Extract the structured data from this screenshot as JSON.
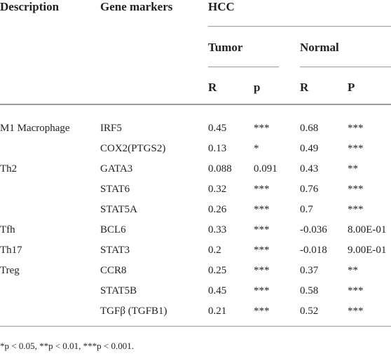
{
  "header": {
    "description": "Description",
    "gene_markers": "Gene markers",
    "hcc": "HCC",
    "tumor": "Tumor",
    "normal": "Normal",
    "tumor_r": "R",
    "tumor_p": "p",
    "normal_r": "R",
    "normal_p": "P"
  },
  "table": {
    "groups": [
      {
        "description": "M1 Macrophage",
        "rows": [
          [
            "IRF5",
            "0.45",
            "***",
            "0.68",
            "***"
          ],
          [
            "COX2(PTGS2)",
            "0.13",
            "*",
            "0.49",
            "***"
          ]
        ]
      },
      {
        "description": "Th2",
        "rows": [
          [
            "GATA3",
            "0.088",
            "0.091",
            "0.43",
            "**"
          ],
          [
            "STAT6",
            "0.32",
            "***",
            "0.76",
            "***"
          ],
          [
            "STAT5A",
            "0.26",
            "***",
            "0.7",
            "***"
          ]
        ]
      },
      {
        "description": "Tfh",
        "rows": [
          [
            "BCL6",
            "0.33",
            "***",
            "-0.036",
            "8.00E-01"
          ]
        ]
      },
      {
        "description": "Th17",
        "rows": [
          [
            "STAT3",
            "0.2",
            "***",
            "-0.018",
            "9.00E-01"
          ]
        ]
      },
      {
        "description": "Treg",
        "rows": [
          [
            "CCR8",
            "0.25",
            "***",
            "0.37",
            "**"
          ],
          [
            "STAT5B",
            "0.45",
            "***",
            "0.58",
            "***"
          ],
          [
            "TGFβ (TGFB1)",
            "0.21",
            "***",
            "0.52",
            "***"
          ]
        ]
      }
    ]
  },
  "footnote": "*p < 0.05, **p < 0.01, ***p < 0.001."
}
